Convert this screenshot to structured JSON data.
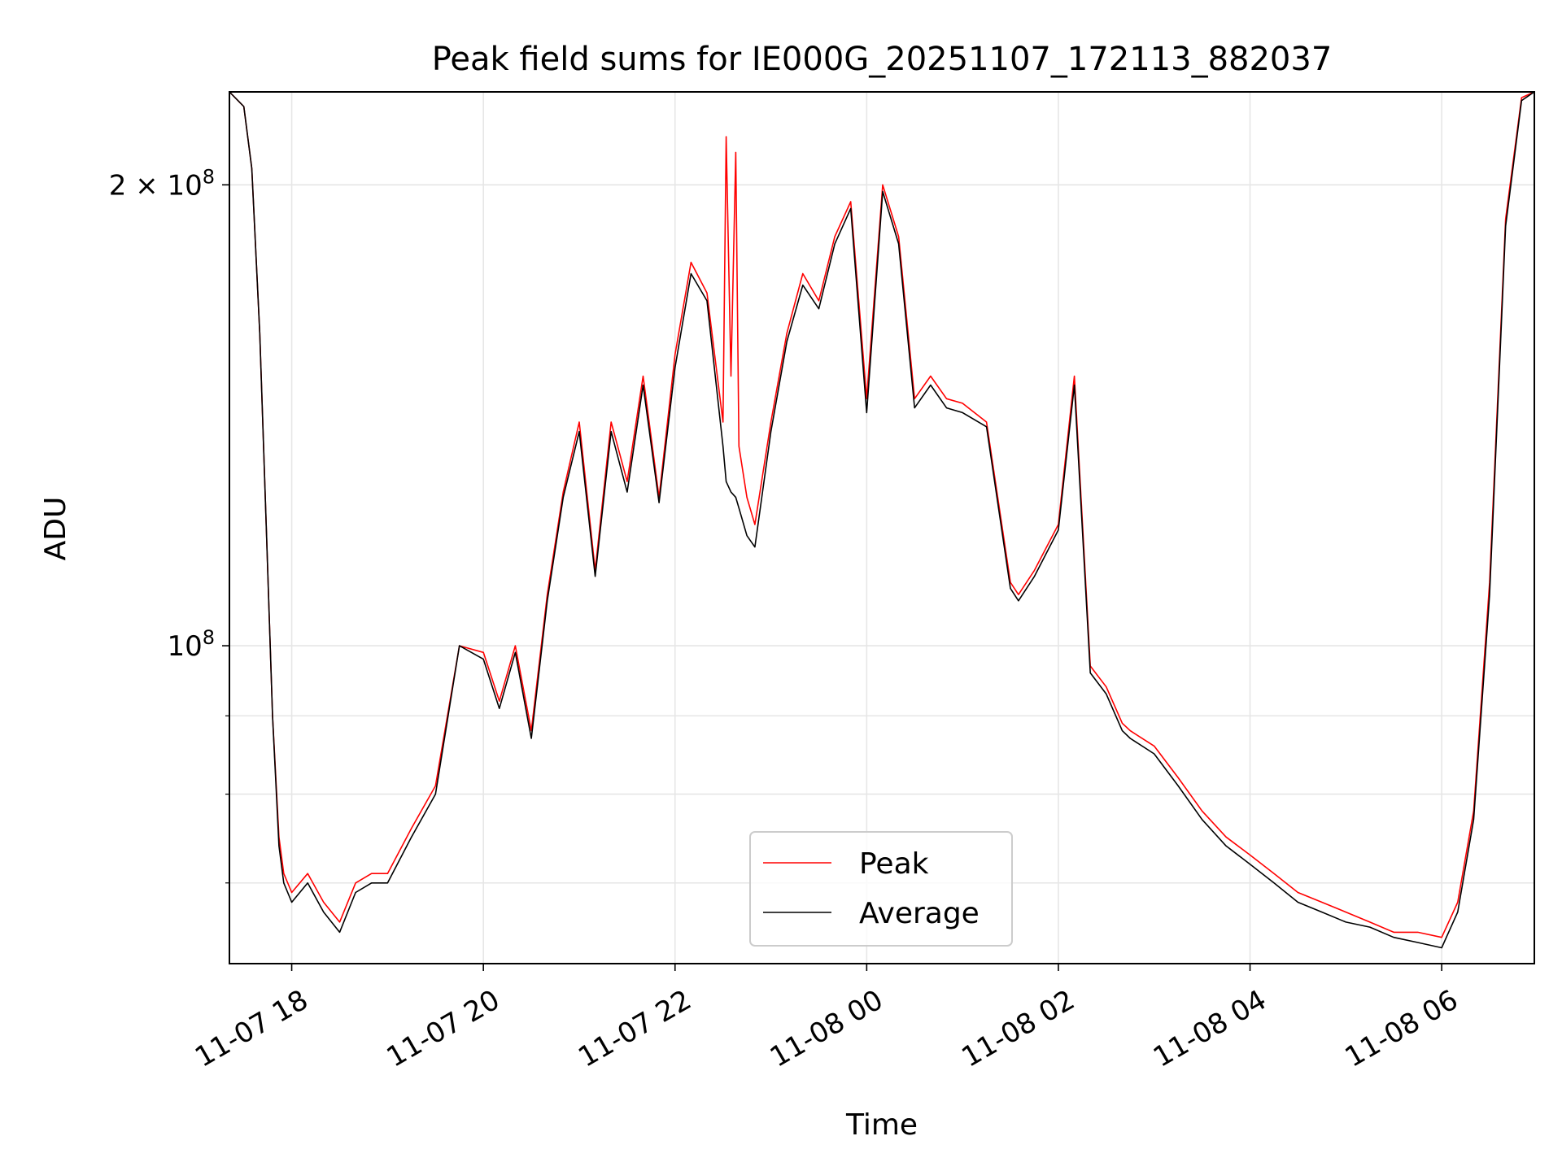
{
  "chart_data": {
    "type": "line",
    "title": "Peak field sums for IE000G_20251107_172113_882037",
    "xlabel": "Time",
    "ylabel": "ADU",
    "yscale": "log",
    "xlim": [
      "2025-11-07 17:21",
      "2025-11-08 06:58"
    ],
    "ylim": [
      62000000,
      230000000
    ],
    "grid": true,
    "legend_position": "lower-center",
    "x_ticks": [
      {
        "value": "2025-11-07 18:00",
        "label": "11-07 18"
      },
      {
        "value": "2025-11-07 20:00",
        "label": "11-07 20"
      },
      {
        "value": "2025-11-07 22:00",
        "label": "11-07 22"
      },
      {
        "value": "2025-11-08 00:00",
        "label": "11-08 00"
      },
      {
        "value": "2025-11-08 02:00",
        "label": "11-08 02"
      },
      {
        "value": "2025-11-08 04:00",
        "label": "11-08 04"
      },
      {
        "value": "2025-11-08 06:00",
        "label": "11-08 06"
      }
    ],
    "y_major_ticks": [
      {
        "value": 100000000,
        "base": "10",
        "exp": "8",
        "prefix": ""
      },
      {
        "value": 200000000,
        "base": "10",
        "exp": "8",
        "prefix": "2 × "
      }
    ],
    "y_minor_ticks": [
      70000000,
      80000000,
      90000000
    ],
    "series": [
      {
        "name": "Peak",
        "color": "#ff0000",
        "x": [
          "2025-11-07 17:21",
          "2025-11-07 17:30",
          "17:35",
          "17:40",
          "17:44",
          "17:48",
          "17:52",
          "17:55",
          "18:00",
          "18:10",
          "18:20",
          "18:30",
          "18:40",
          "18:50",
          "19:00",
          "19:15",
          "19:30",
          "19:45",
          "20:00",
          "20:10",
          "20:20",
          "20:30",
          "20:40",
          "20:50",
          "21:00",
          "21:10",
          "21:20",
          "21:30",
          "21:40",
          "21:50",
          "22:00",
          "22:10",
          "22:20",
          "22:30",
          "22:32",
          "22:35",
          "22:38",
          "22:40",
          "22:45",
          "22:50",
          "23:00",
          "23:10",
          "23:20",
          "23:30",
          "23:40",
          "23:50",
          "2025-11-08 00:00",
          "00:10",
          "00:20",
          "00:30",
          "00:40",
          "00:50",
          "01:00",
          "01:15",
          "01:30",
          "01:35",
          "01:45",
          "02:00",
          "02:10",
          "02:20",
          "02:30",
          "02:40",
          "02:45",
          "03:00",
          "03:15",
          "03:30",
          "03:45",
          "04:00",
          "04:15",
          "04:30",
          "04:45",
          "05:00",
          "05:15",
          "05:30",
          "05:45",
          "06:00",
          "06:10",
          "06:20",
          "06:30",
          "06:40",
          "06:50",
          "06:58"
        ],
        "values": [
          230000000,
          225000000,
          205000000,
          160000000,
          120000000,
          90000000,
          75000000,
          71000000,
          69000000,
          71000000,
          68000000,
          66000000,
          70000000,
          71000000,
          71000000,
          76000000,
          81000000,
          100000000,
          99000000,
          92000000,
          100000000,
          88000000,
          108000000,
          126000000,
          140000000,
          112000000,
          140000000,
          128000000,
          150000000,
          125000000,
          155000000,
          178000000,
          170000000,
          140000000,
          215000000,
          150000000,
          210000000,
          135000000,
          125000000,
          120000000,
          140000000,
          160000000,
          175000000,
          168000000,
          185000000,
          195000000,
          145000000,
          200000000,
          185000000,
          145000000,
          150000000,
          145000000,
          144000000,
          140000000,
          110000000,
          108000000,
          112000000,
          120000000,
          150000000,
          97000000,
          94000000,
          89000000,
          88000000,
          86000000,
          82000000,
          78000000,
          75000000,
          73000000,
          71000000,
          69000000,
          68000000,
          67000000,
          66000000,
          65000000,
          65000000,
          64500000,
          68000000,
          78000000,
          110000000,
          190000000,
          228000000,
          230000000
        ]
      },
      {
        "name": "Average",
        "color": "#000000",
        "x": [
          "2025-11-07 17:21",
          "2025-11-07 17:30",
          "17:35",
          "17:40",
          "17:44",
          "17:48",
          "17:52",
          "17:55",
          "18:00",
          "18:10",
          "18:20",
          "18:30",
          "18:40",
          "18:50",
          "19:00",
          "19:15",
          "19:30",
          "19:45",
          "20:00",
          "20:10",
          "20:20",
          "20:30",
          "20:40",
          "20:50",
          "21:00",
          "21:10",
          "21:20",
          "21:30",
          "21:40",
          "21:50",
          "22:00",
          "22:10",
          "22:20",
          "22:30",
          "22:32",
          "22:35",
          "22:38",
          "22:40",
          "22:45",
          "22:50",
          "23:00",
          "23:10",
          "23:20",
          "23:30",
          "23:40",
          "23:50",
          "2025-11-08 00:00",
          "00:10",
          "00:20",
          "00:30",
          "00:40",
          "00:50",
          "01:00",
          "01:15",
          "01:30",
          "01:35",
          "01:45",
          "02:00",
          "02:10",
          "02:20",
          "02:30",
          "02:40",
          "02:45",
          "03:00",
          "03:15",
          "03:30",
          "03:45",
          "04:00",
          "04:15",
          "04:30",
          "04:45",
          "05:00",
          "05:15",
          "05:30",
          "05:45",
          "06:00",
          "06:10",
          "06:20",
          "06:30",
          "06:40",
          "06:50",
          "06:58"
        ],
        "values": [
          230000000,
          225000000,
          205000000,
          160000000,
          120000000,
          90000000,
          74000000,
          70000000,
          68000000,
          70000000,
          67000000,
          65000000,
          69000000,
          70000000,
          70000000,
          75000000,
          80000000,
          100000000,
          98000000,
          91000000,
          99000000,
          87000000,
          107000000,
          125000000,
          138000000,
          111000000,
          138000000,
          126000000,
          148000000,
          124000000,
          152000000,
          175000000,
          168000000,
          135000000,
          128000000,
          126000000,
          125000000,
          123000000,
          118000000,
          116000000,
          138000000,
          158000000,
          172000000,
          166000000,
          183000000,
          193000000,
          142000000,
          198000000,
          183000000,
          143000000,
          148000000,
          143000000,
          142000000,
          139000000,
          109000000,
          107000000,
          111000000,
          119000000,
          148000000,
          96000000,
          93000000,
          88000000,
          87000000,
          85000000,
          81000000,
          77000000,
          74000000,
          72000000,
          70000000,
          68000000,
          67000000,
          66000000,
          65500000,
          64500000,
          64000000,
          63500000,
          67000000,
          77000000,
          108000000,
          188000000,
          227000000,
          230000000
        ]
      }
    ]
  }
}
